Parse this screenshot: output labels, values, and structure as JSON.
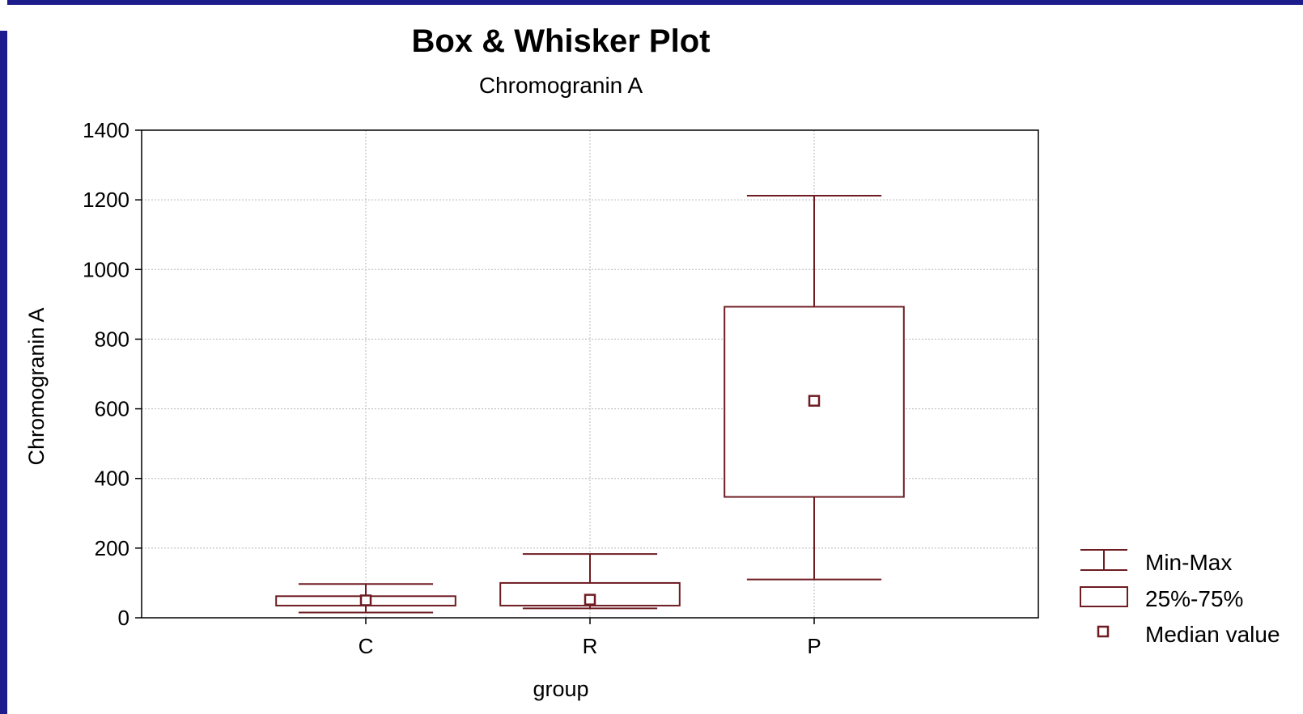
{
  "chart_data": {
    "type": "boxplot",
    "title": "Box & Whisker Plot",
    "subtitle": "Chromogranin A",
    "xlabel": "group",
    "ylabel": "Chromogranin A",
    "ylim": [
      0,
      1400
    ],
    "yticks": [
      0,
      200,
      400,
      600,
      800,
      1000,
      1200,
      1400
    ],
    "grid": true,
    "legend_position": "bottom-right",
    "legend": [
      "Min-Max",
      "25%-75%",
      "Median value"
    ],
    "categories": [
      "C",
      "R",
      "P"
    ],
    "boxes": [
      {
        "category": "C",
        "min": 15,
        "q1": 35,
        "median": 50,
        "q3": 62,
        "max": 97
      },
      {
        "category": "R",
        "min": 27,
        "q1": 35,
        "median": 52,
        "q3": 100,
        "max": 183
      },
      {
        "category": "P",
        "min": 110,
        "q1": 347,
        "median": 623,
        "q3": 893,
        "max": 1212
      }
    ],
    "colors": {
      "stroke": "#6e1c22",
      "grid": "#b8b8b8",
      "axis": "#000000"
    }
  }
}
